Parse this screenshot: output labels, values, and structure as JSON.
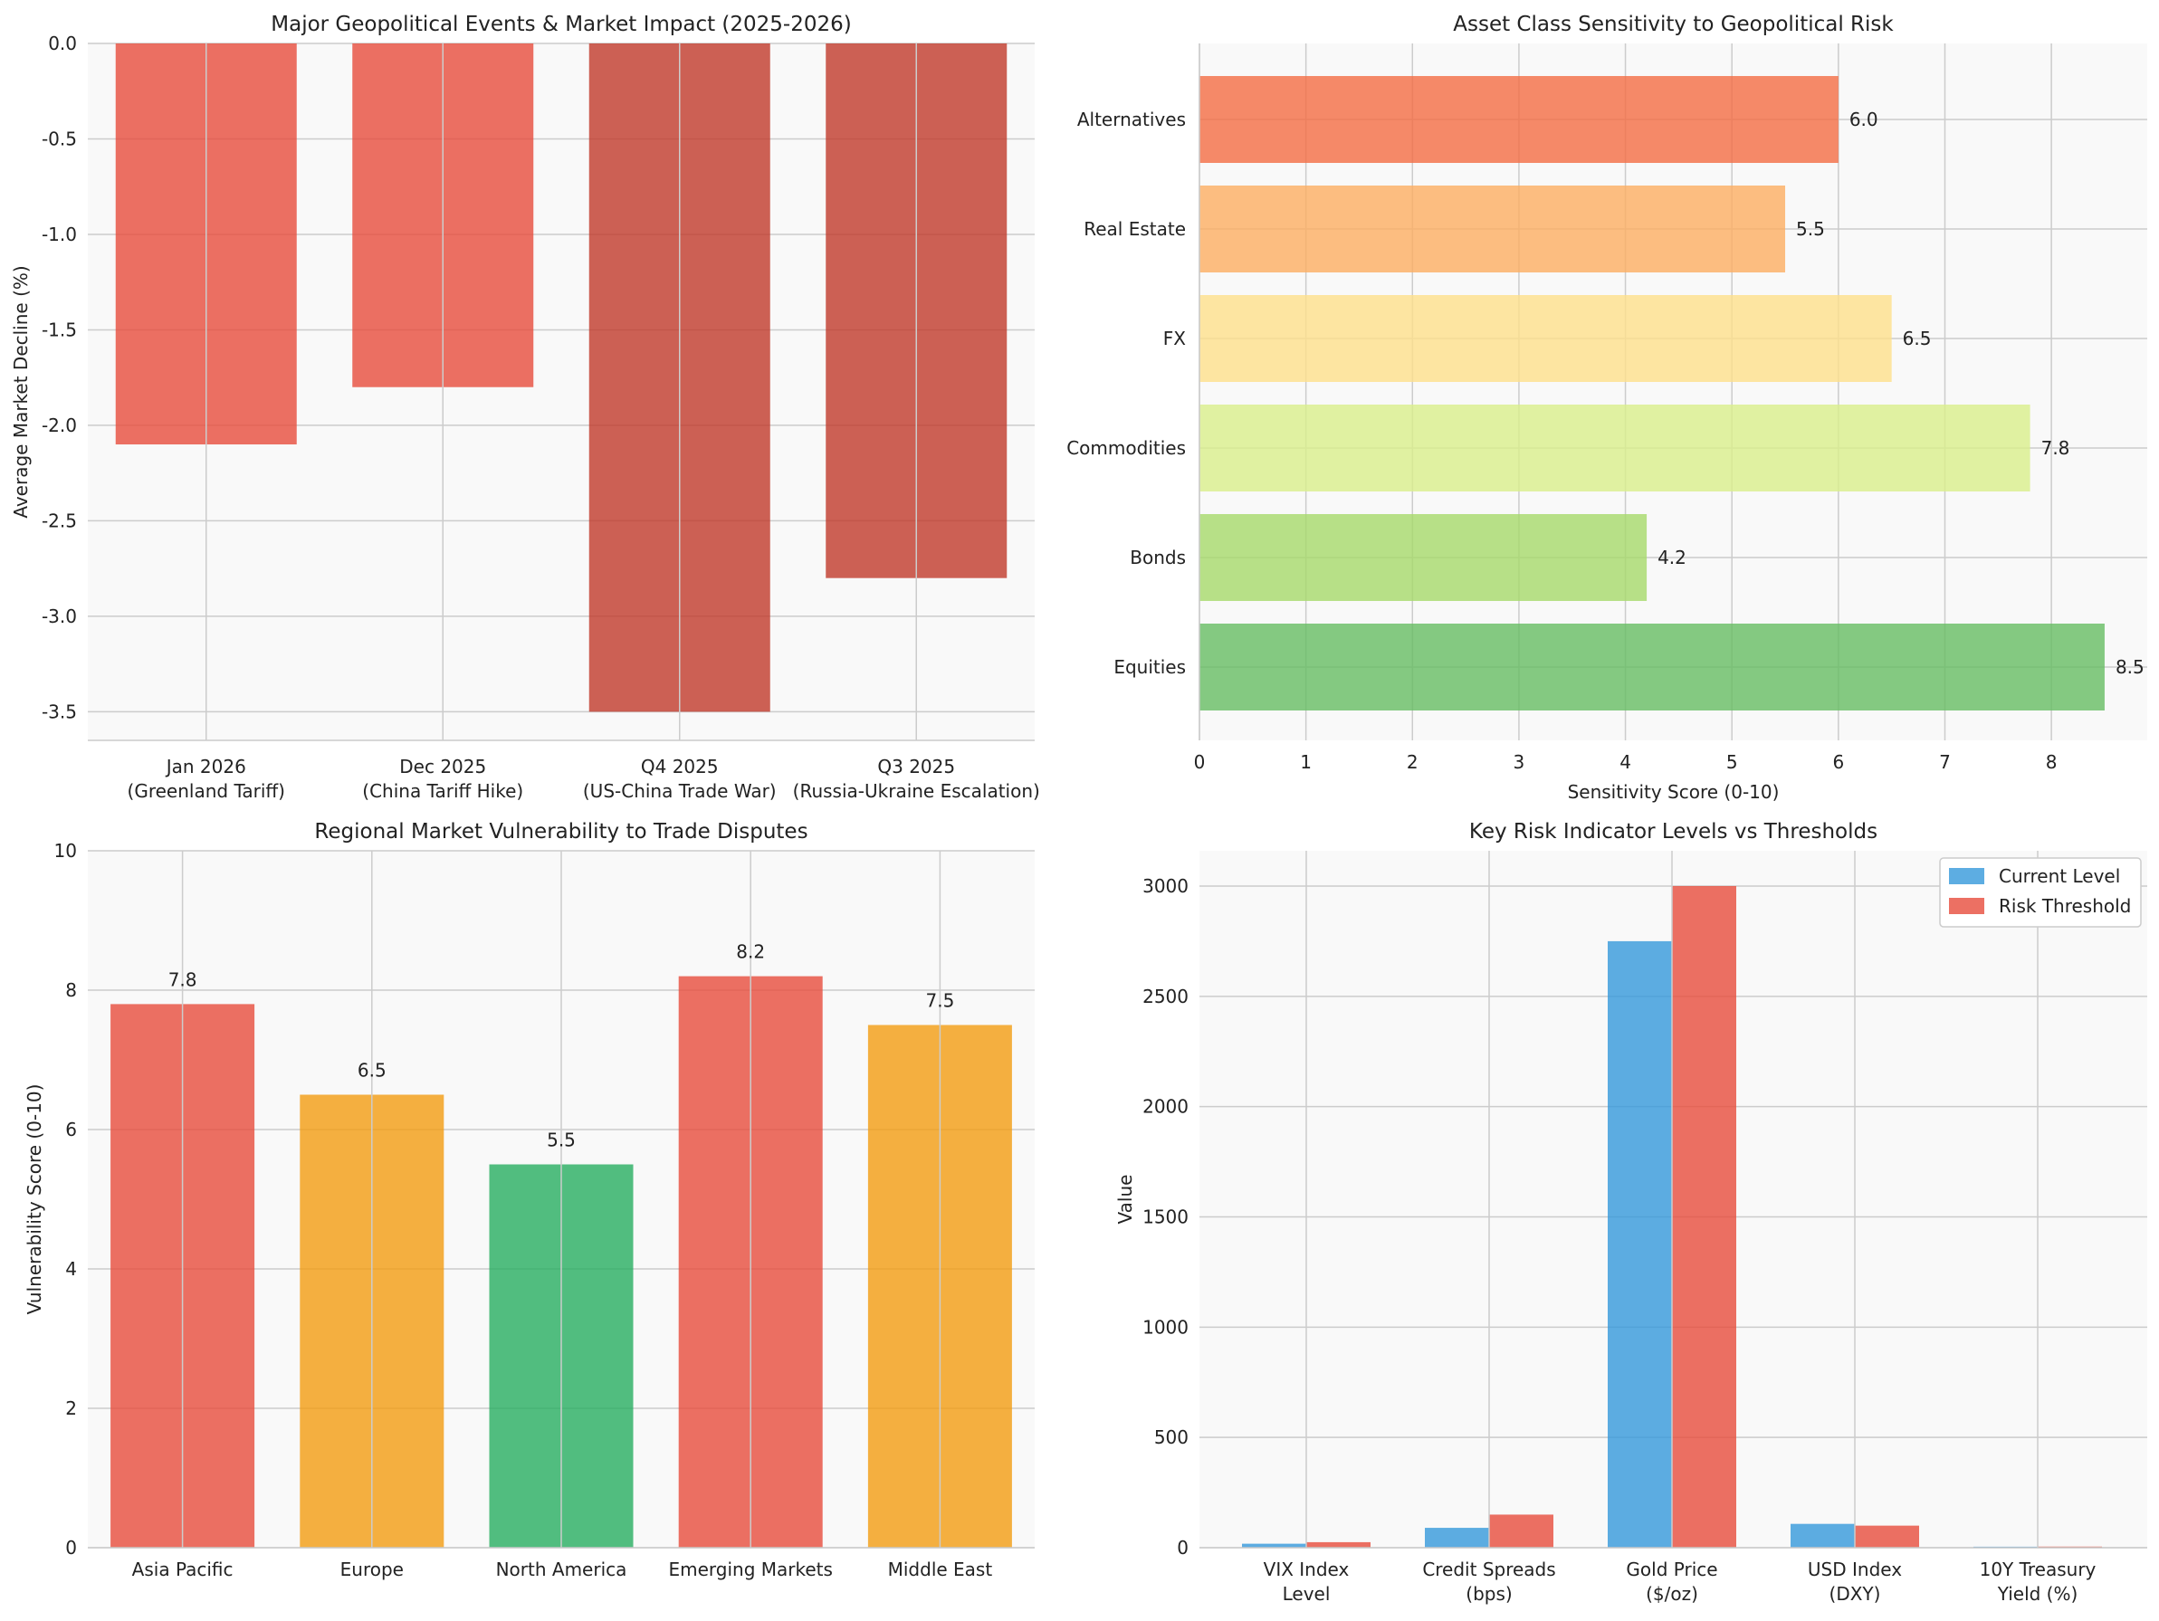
{
  "chart_data": [
    {
      "type": "bar",
      "title": "Major Geopolitical Events & Market Impact (2025-2026)",
      "xlabel": "",
      "ylabel": "Average Market Decline (%)",
      "ylim": [
        -3.65,
        0
      ],
      "yticks": [
        0.0,
        -0.5,
        -1.0,
        -1.5,
        -2.0,
        -2.5,
        -3.0,
        -3.5
      ],
      "ytick_labels": [
        "0.0",
        "-0.5",
        "-1.0",
        "-1.5",
        "-2.0",
        "-2.5",
        "-3.0",
        "-3.5"
      ],
      "categories": [
        [
          "Jan 2026",
          "(Greenland Tariff)"
        ],
        [
          "Dec 2025",
          "(China Tariff Hike)"
        ],
        [
          "Q4 2025",
          "(US-China Trade War)"
        ],
        [
          "Q3 2025",
          "(Russia-Ukraine Escalation)"
        ]
      ],
      "values": [
        -2.1,
        -1.8,
        -3.5,
        -2.8
      ],
      "colors": [
        "#e74c3c",
        "#e74c3c",
        "#c0392b",
        "#c0392b"
      ],
      "grid": true
    },
    {
      "type": "bar",
      "orientation": "horizontal",
      "title": "Asset Class Sensitivity to Geopolitical Risk",
      "xlabel": "Sensitivity Score (0-10)",
      "ylabel": "",
      "xlim": [
        0,
        8.9
      ],
      "xticks": [
        0,
        1,
        2,
        3,
        4,
        5,
        6,
        7,
        8
      ],
      "categories": [
        "Equities",
        "Bonds",
        "Commodities",
        "FX",
        "Real Estate",
        "Alternatives"
      ],
      "values": [
        8.5,
        4.2,
        7.8,
        6.5,
        5.5,
        6.0
      ],
      "value_labels": [
        "8.5",
        "4.2",
        "7.8",
        "6.5",
        "5.5",
        "6.0"
      ],
      "colors": [
        "#66bd63",
        "#a6d96a",
        "#d9ef8b",
        "#fee08b",
        "#fdae61",
        "#f46d43"
      ],
      "grid": true
    },
    {
      "type": "bar",
      "title": "Regional Market Vulnerability to Trade Disputes",
      "xlabel": "",
      "ylabel": "Vulnerability Score (0-10)",
      "ylim": [
        0,
        10
      ],
      "yticks": [
        0,
        2,
        4,
        6,
        8,
        10
      ],
      "categories": [
        "Asia Pacific",
        "Europe",
        "North America",
        "Emerging Markets",
        "Middle East"
      ],
      "values": [
        7.8,
        6.5,
        5.5,
        8.2,
        7.5
      ],
      "value_labels": [
        "7.8",
        "6.5",
        "5.5",
        "8.2",
        "7.5"
      ],
      "colors": [
        "#e74c3c",
        "#f39c12",
        "#27ae60",
        "#e74c3c",
        "#f39c12"
      ],
      "grid": true
    },
    {
      "type": "bar",
      "title": "Key Risk Indicator Levels vs Thresholds",
      "xlabel": "",
      "ylabel": "Value",
      "ylim": [
        0,
        3160
      ],
      "yticks": [
        0,
        500,
        1000,
        1500,
        2000,
        2500,
        3000
      ],
      "categories": [
        [
          "VIX Index",
          "Level"
        ],
        [
          "Credit Spreads",
          "(bps)"
        ],
        [
          "Gold Price",
          "($/oz)"
        ],
        [
          "USD Index",
          "(DXY)"
        ],
        [
          "10Y Treasury",
          "Yield (%)"
        ]
      ],
      "series": [
        {
          "name": "Current Level",
          "color": "#3498db",
          "values": [
            18,
            90,
            2750,
            108,
            4.5
          ]
        },
        {
          "name": "Risk Threshold",
          "color": "#e74c3c",
          "values": [
            25,
            150,
            3000,
            100,
            5.0
          ]
        }
      ],
      "legend_position": "top-right",
      "grid": true
    }
  ]
}
